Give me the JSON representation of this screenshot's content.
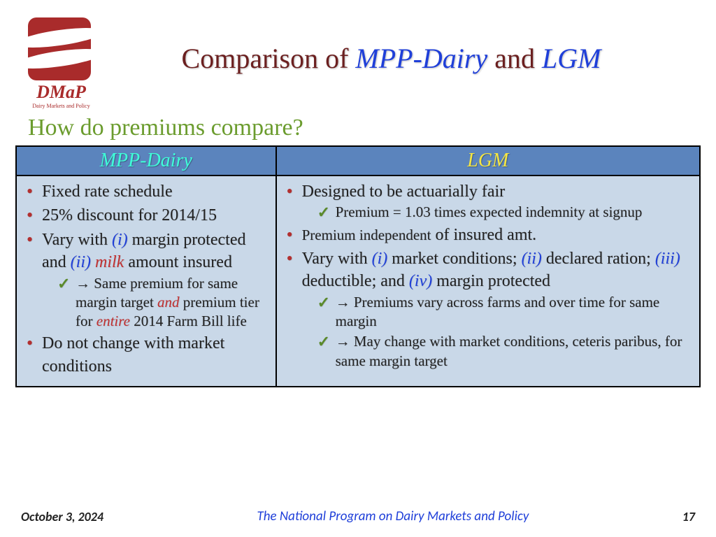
{
  "logo": {
    "brand": "DMaP",
    "subtitle": "Dairy Markets and Policy"
  },
  "title": {
    "part1": "Comparison of ",
    "part2": "MPP-Dairy",
    "part3": " and ",
    "part4": "LGM"
  },
  "subtitle": "How do premiums compare?",
  "table": {
    "headers": {
      "col1": "MPP-Dairy",
      "col2": "LGM"
    },
    "mpp": {
      "b1": "Fixed rate schedule",
      "b2": "25% discount for 2014/15",
      "b3_a": "Vary with ",
      "b3_i": "(i)",
      "b3_b": " margin protected and ",
      "b3_ii": "(ii)",
      "b3_c": " ",
      "b3_milk": "milk",
      "b3_d": " amount insured",
      "s1_a": "→ Same premium for same margin target ",
      "s1_and": "and",
      "s1_b": " premium tier for ",
      "s1_entire": "entire",
      "s1_c": " 2014 Farm Bill life",
      "b4": "Do not change with market conditions"
    },
    "lgm": {
      "b1": "Designed to be actuarially fair",
      "s1": "Premium = 1.03 times expected indemnity at signup",
      "b2_a": "Premium independent",
      "b2_b": " of insured amt.",
      "b3_a": "Vary with  ",
      "b3_i": "(i)",
      "b3_b": " market conditions; ",
      "b3_ii": "(ii)",
      "b3_c": " declared ration; ",
      "b3_iii": "(iii)",
      "b3_d": " deductible; and ",
      "b3_iv": "(iv)",
      "b3_e": " margin protected",
      "s2": "→ Premiums vary across farms and over time for same margin",
      "s3": "→ May change with market conditions, ceteris paribus, for same margin target"
    }
  },
  "footer": {
    "date": "October 3, 2024",
    "center": "The National Program on Dairy Markets and Policy",
    "page": "17"
  },
  "colors": {
    "brand_red": "#a92b2b",
    "title_dark": "#6b1f1f",
    "title_blue": "#1f3fd9",
    "subtitle_green": "#6b9c2e",
    "header_bg": "#5b84bd",
    "cell_bg": "#c9d8e8",
    "bullet_red": "#b23030",
    "check_green": "#5a8a2a",
    "col1_text": "#3fffd9",
    "col2_text": "#f5e642"
  }
}
